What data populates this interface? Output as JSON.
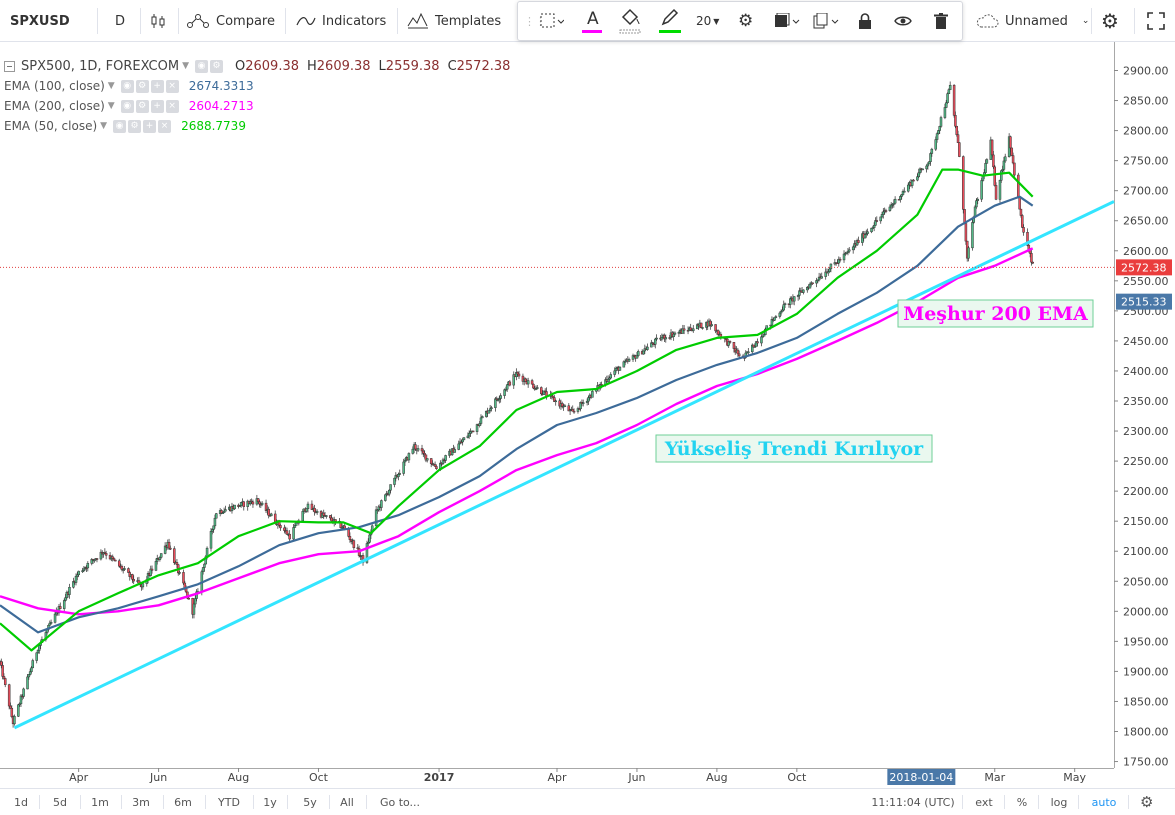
{
  "toolbar": {
    "symbol": "SPXUSD",
    "interval": "D",
    "compare_label": "Compare",
    "indicators_label": "Indicators",
    "templates_label": "Templates",
    "font_size": "20",
    "layout_name": "Unnamed"
  },
  "legend": {
    "main_title": "SPX500, 1D, FOREXCOM",
    "ohlc": [
      {
        "k": "O",
        "v": "2609.38"
      },
      {
        "k": "H",
        "v": "2609.38"
      },
      {
        "k": "L",
        "v": "2559.38"
      },
      {
        "k": "C",
        "v": "2572.38"
      }
    ],
    "indicators": [
      {
        "name": "EMA (100, close)",
        "value": "2674.3313",
        "color": "#3d6b99"
      },
      {
        "name": "EMA (200, close)",
        "value": "2604.2713",
        "color": "#ff00ff"
      },
      {
        "name": "EMA (50, close)",
        "value": "2688.7739",
        "color": "#00cc00"
      }
    ]
  },
  "price_axis": {
    "ticks": [
      "2900.00",
      "2850.00",
      "2800.00",
      "2750.00",
      "2700.00",
      "2650.00",
      "2600.00",
      "2550.00",
      "2500.00",
      "2450.00",
      "2400.00",
      "2350.00",
      "2300.00",
      "2250.00",
      "2200.00",
      "2150.00",
      "2100.00",
      "2050.00",
      "2000.00",
      "1950.00",
      "1900.00",
      "1850.00",
      "1800.00",
      "1750.00"
    ],
    "last_price": "2572.38",
    "crosshair_price": "2515.33"
  },
  "time_axis": {
    "labels": [
      "Apr",
      "Jun",
      "Aug",
      "Oct",
      "2017",
      "Apr",
      "Jun",
      "Aug",
      "Oct",
      "Mar",
      "May"
    ],
    "crosshair_date": "2018-01-04"
  },
  "annotations": {
    "ema_note": "Meşhur 200 EMA",
    "trend_note": "Yükseliş Trendi Kırılıyor"
  },
  "bottom": {
    "ranges": [
      "1d",
      "5d",
      "1m",
      "3m",
      "6m",
      "YTD",
      "1y",
      "5y",
      "All"
    ],
    "goto": "Go to...",
    "clock": "11:11:04 (UTC)",
    "ext": "ext",
    "pct": "%",
    "log": "log",
    "auto": "auto"
  },
  "chart_data": {
    "type": "line",
    "symbol": "SPX500",
    "timeframe": "1D",
    "y_range": [
      1745,
      2915
    ],
    "x_range": [
      "2016-02-01",
      "2018-05-31"
    ],
    "colors": {
      "up": "#53b987",
      "down": "#eb4d5c",
      "ema50": "#00cc00",
      "ema100": "#3d6b99",
      "ema200": "#ff00ff",
      "trend": "#33e5ff"
    },
    "price_anchors": [
      [
        "2016-02-01",
        1915
      ],
      [
        "2016-02-11",
        1815
      ],
      [
        "2016-03-01",
        1940
      ],
      [
        "2016-04-01",
        2065
      ],
      [
        "2016-04-20",
        2100
      ],
      [
        "2016-05-19",
        2040
      ],
      [
        "2016-06-08",
        2115
      ],
      [
        "2016-06-27",
        2000
      ],
      [
        "2016-07-15",
        2165
      ],
      [
        "2016-08-15",
        2185
      ],
      [
        "2016-09-09",
        2125
      ],
      [
        "2016-09-22",
        2175
      ],
      [
        "2016-10-20",
        2140
      ],
      [
        "2016-11-04",
        2085
      ],
      [
        "2016-11-14",
        2165
      ],
      [
        "2016-12-13",
        2275
      ],
      [
        "2016-12-30",
        2240
      ],
      [
        "2017-01-26",
        2300
      ],
      [
        "2017-03-01",
        2395
      ],
      [
        "2017-04-13",
        2330
      ],
      [
        "2017-05-15",
        2400
      ],
      [
        "2017-06-19",
        2455
      ],
      [
        "2017-07-26",
        2480
      ],
      [
        "2017-08-21",
        2420
      ],
      [
        "2017-09-20",
        2505
      ],
      [
        "2017-11-08",
        2595
      ],
      [
        "2017-12-18",
        2690
      ],
      [
        "2018-01-10",
        2750
      ],
      [
        "2018-01-26",
        2873
      ],
      [
        "2018-02-02",
        2760
      ],
      [
        "2018-02-08",
        2585
      ],
      [
        "2018-02-13",
        2660
      ],
      [
        "2018-02-26",
        2780
      ],
      [
        "2018-03-02",
        2690
      ],
      [
        "2018-03-12",
        2790
      ],
      [
        "2018-03-22",
        2640
      ],
      [
        "2018-03-30",
        2575
      ]
    ],
    "ema50": [
      [
        "2016-02-01",
        1980
      ],
      [
        "2016-02-25",
        1935
      ],
      [
        "2016-04-01",
        2000
      ],
      [
        "2016-05-01",
        2030
      ],
      [
        "2016-06-01",
        2060
      ],
      [
        "2016-07-01",
        2080
      ],
      [
        "2016-08-01",
        2125
      ],
      [
        "2016-09-01",
        2150
      ],
      [
        "2016-10-01",
        2148
      ],
      [
        "2016-10-20",
        2148
      ],
      [
        "2016-11-10",
        2130
      ],
      [
        "2016-12-01",
        2175
      ],
      [
        "2017-01-01",
        2235
      ],
      [
        "2017-02-01",
        2275
      ],
      [
        "2017-03-01",
        2335
      ],
      [
        "2017-04-01",
        2365
      ],
      [
        "2017-05-01",
        2370
      ],
      [
        "2017-06-01",
        2400
      ],
      [
        "2017-07-01",
        2435
      ],
      [
        "2017-08-01",
        2455
      ],
      [
        "2017-09-01",
        2460
      ],
      [
        "2017-10-01",
        2495
      ],
      [
        "2017-11-01",
        2555
      ],
      [
        "2017-12-01",
        2600
      ],
      [
        "2018-01-01",
        2660
      ],
      [
        "2018-01-20",
        2735
      ],
      [
        "2018-02-01",
        2735
      ],
      [
        "2018-02-20",
        2725
      ],
      [
        "2018-03-12",
        2730
      ],
      [
        "2018-03-30",
        2690
      ]
    ],
    "ema100": [
      [
        "2016-02-01",
        2010
      ],
      [
        "2016-03-01",
        1965
      ],
      [
        "2016-04-01",
        1990
      ],
      [
        "2016-05-01",
        2005
      ],
      [
        "2016-06-01",
        2025
      ],
      [
        "2016-07-01",
        2045
      ],
      [
        "2016-08-01",
        2075
      ],
      [
        "2016-09-01",
        2110
      ],
      [
        "2016-10-01",
        2130
      ],
      [
        "2016-11-01",
        2140
      ],
      [
        "2016-12-01",
        2160
      ],
      [
        "2017-01-01",
        2190
      ],
      [
        "2017-02-01",
        2225
      ],
      [
        "2017-03-01",
        2270
      ],
      [
        "2017-04-01",
        2310
      ],
      [
        "2017-05-01",
        2330
      ],
      [
        "2017-06-01",
        2355
      ],
      [
        "2017-07-01",
        2385
      ],
      [
        "2017-08-01",
        2410
      ],
      [
        "2017-09-01",
        2430
      ],
      [
        "2017-10-01",
        2455
      ],
      [
        "2017-11-01",
        2495
      ],
      [
        "2017-12-01",
        2530
      ],
      [
        "2018-01-01",
        2575
      ],
      [
        "2018-02-01",
        2640
      ],
      [
        "2018-03-01",
        2675
      ],
      [
        "2018-03-20",
        2690
      ],
      [
        "2018-03-30",
        2675
      ]
    ],
    "ema200": [
      [
        "2016-02-01",
        2025
      ],
      [
        "2016-03-01",
        2005
      ],
      [
        "2016-04-01",
        1995
      ],
      [
        "2016-05-01",
        2000
      ],
      [
        "2016-06-01",
        2010
      ],
      [
        "2016-07-01",
        2030
      ],
      [
        "2016-08-01",
        2055
      ],
      [
        "2016-09-01",
        2080
      ],
      [
        "2016-10-01",
        2095
      ],
      [
        "2016-11-01",
        2100
      ],
      [
        "2016-12-01",
        2125
      ],
      [
        "2017-01-01",
        2165
      ],
      [
        "2017-02-01",
        2200
      ],
      [
        "2017-03-01",
        2235
      ],
      [
        "2017-04-01",
        2260
      ],
      [
        "2017-05-01",
        2280
      ],
      [
        "2017-06-01",
        2310
      ],
      [
        "2017-07-01",
        2345
      ],
      [
        "2017-08-01",
        2375
      ],
      [
        "2017-09-01",
        2395
      ],
      [
        "2017-10-01",
        2420
      ],
      [
        "2017-11-01",
        2450
      ],
      [
        "2017-12-01",
        2480
      ],
      [
        "2018-01-01",
        2515
      ],
      [
        "2018-02-01",
        2555
      ],
      [
        "2018-03-01",
        2575
      ],
      [
        "2018-03-30",
        2604
      ]
    ],
    "trendline": [
      [
        "2016-02-12",
        1806
      ],
      [
        "2018-05-31",
        2682
      ]
    ]
  }
}
